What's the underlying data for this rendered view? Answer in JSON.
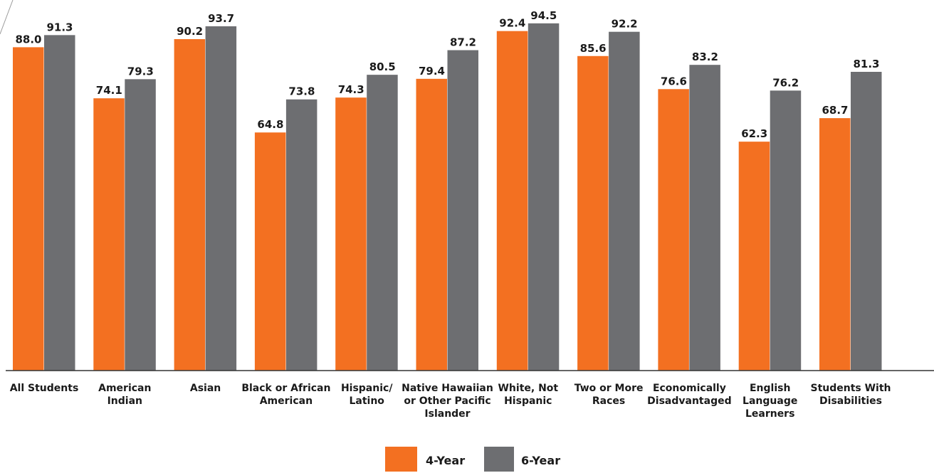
{
  "chart_data": {
    "type": "bar",
    "categories": [
      "All Students",
      "American Indian",
      "Asian",
      "Black or African American",
      "Hispanic/ Latino",
      "Native Hawaiian or Other Pacific Islander",
      "White, Not Hispanic",
      "Two or More Races",
      "Economically Disadvantaged",
      "English Language Learners",
      "Students With Disabilities"
    ],
    "category_lines": [
      [
        "All Students"
      ],
      [
        "American",
        "Indian"
      ],
      [
        "Asian"
      ],
      [
        "Black or African",
        "American"
      ],
      [
        "Hispanic/",
        "Latino"
      ],
      [
        "Native Hawaiian",
        "or Other Pacific",
        "Islander"
      ],
      [
        "White, Not",
        "Hispanic"
      ],
      [
        "Two or More",
        "Races"
      ],
      [
        "Economically",
        "Disadvantaged"
      ],
      [
        "English",
        "Language",
        "Learners"
      ],
      [
        "Students With",
        "Disabilities"
      ]
    ],
    "series": [
      {
        "name": "4-Year",
        "color": "#f37021",
        "values": [
          88.0,
          74.1,
          90.2,
          64.8,
          74.3,
          79.4,
          92.4,
          85.6,
          76.6,
          62.3,
          68.7
        ]
      },
      {
        "name": "6-Year",
        "color": "#6d6e71",
        "values": [
          91.3,
          79.3,
          93.7,
          73.8,
          80.5,
          87.2,
          94.5,
          92.2,
          83.2,
          76.2,
          81.3
        ]
      }
    ],
    "ylim": [
      0,
      100
    ],
    "grid": false,
    "legend": "bottom-center"
  }
}
